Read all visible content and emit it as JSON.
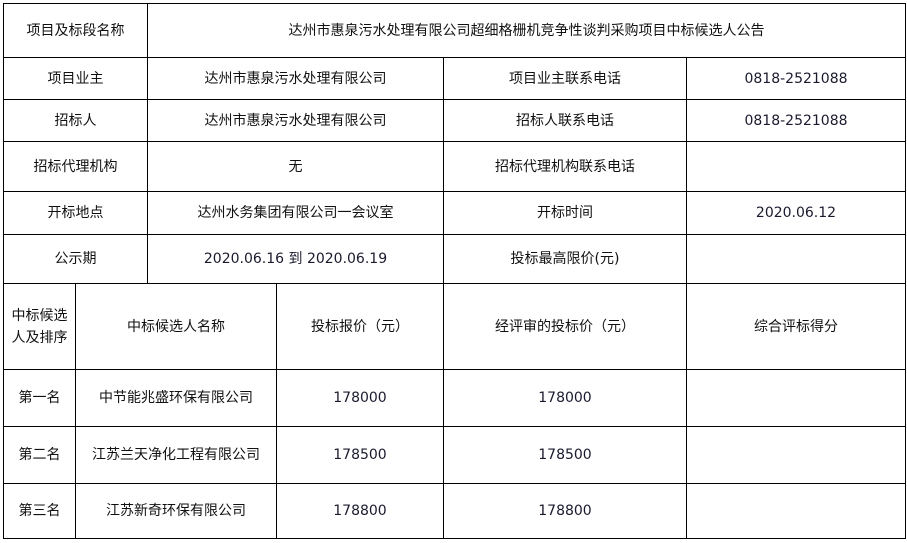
{
  "info": {
    "project_name_label": "项目及标段名称",
    "project_name": "达州市惠泉污水处理有限公司超细格栅机竞争性谈判采购项目中标候选人公告",
    "owner_label": "项目业主",
    "owner": "达州市惠泉污水处理有限公司",
    "owner_phone_label": "项目业主联系电话",
    "owner_phone": "0818-2521088",
    "tenderer_label": "招标人",
    "tenderer": "达州市惠泉污水处理有限公司",
    "tenderer_phone_label": "招标人联系电话",
    "tenderer_phone": "0818-2521088",
    "agency_label": "招标代理机构",
    "agency": "无",
    "agency_phone_label": "招标代理机构联系电话",
    "agency_phone": "",
    "location_label": "开标地点",
    "location": "达州水务集团有限公司一会议室",
    "open_time_label": "开标时间",
    "open_time": "2020.06.12",
    "period_label": "公示期",
    "period": "2020.06.16 到 2020.06.19",
    "max_price_label": "投标最高限价(元)",
    "max_price": ""
  },
  "candidates": {
    "headers": [
      "中标候选人及排序",
      "中标候选人名称",
      "投标报价（元）",
      "经评审的投标价（元）",
      "综合评标得分"
    ],
    "rows": [
      {
        "rank": "第一名",
        "name": "中节能兆盛环保有限公司",
        "bid": "178000",
        "reviewed": "178000",
        "score": ""
      },
      {
        "rank": "第二名",
        "name": "江苏兰天净化工程有限公司",
        "bid": "178500",
        "reviewed": "178500",
        "score": ""
      },
      {
        "rank": "第三名",
        "name": "江苏新奇环保有限公司",
        "bid": "178800",
        "reviewed": "178800",
        "score": ""
      }
    ]
  }
}
